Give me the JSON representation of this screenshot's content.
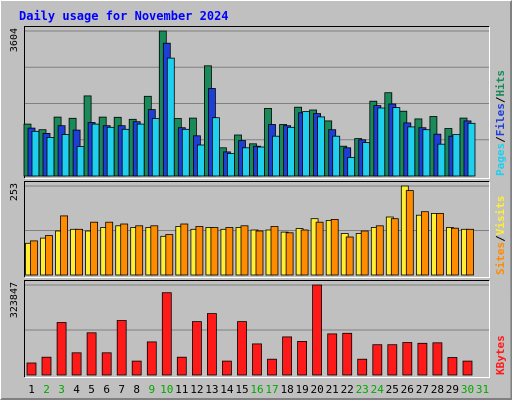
{
  "chart_data": {
    "type": "bar",
    "title": "Daily usage for November 2024",
    "days": [
      1,
      2,
      3,
      4,
      5,
      6,
      7,
      8,
      9,
      10,
      11,
      12,
      13,
      14,
      15,
      16,
      17,
      18,
      19,
      20,
      21,
      22,
      23,
      24,
      25,
      26,
      27,
      28,
      29,
      30,
      31
    ],
    "weekend_days": [
      2,
      3,
      9,
      10,
      16,
      17,
      23,
      24,
      30,
      31
    ],
    "panels": [
      {
        "id": "top",
        "ymax": 3604,
        "ymax_label": "3604",
        "right_labels": [
          "Pages",
          "Files",
          "Hits"
        ],
        "series": [
          {
            "name": "Hits",
            "color": "#1a8a5a",
            "values": [
              1290,
              1150,
              1465,
              1435,
              1990,
              1465,
              1460,
              1410,
              1980,
              3604,
              1430,
              1440,
              2740,
              700,
              1020,
              800,
              1680,
              1280,
              1710,
              1640,
              1370,
              740,
              930,
              1860,
              2070,
              1610,
              1420,
              1480,
              1180,
              1440,
              0
            ]
          },
          {
            "name": "Files",
            "color": "#1e3fd6",
            "values": [
              1190,
              1060,
              1250,
              1140,
              1330,
              1250,
              1250,
              1350,
              1650,
              3300,
              1200,
              1000,
              2175,
              600,
              880,
              740,
              1280,
              1250,
              1570,
              1550,
              1150,
              700,
              900,
              1750,
              1790,
              1320,
              1200,
              1040,
              990,
              1370,
              0
            ]
          },
          {
            "name": "Pages",
            "color": "#1ecfee",
            "values": [
              1110,
              960,
              1030,
              730,
              1290,
              1210,
              1160,
              1290,
              1430,
              2930,
              1160,
              770,
              1450,
              560,
              700,
              720,
              990,
              1210,
              1600,
              1470,
              990,
              460,
              830,
              1690,
              1700,
              1220,
              1150,
              790,
              1030,
              1310,
              0
            ]
          }
        ]
      },
      {
        "id": "middle",
        "ymax": 253,
        "ymax_label": "253",
        "right_labels": [
          "Sites",
          "Visits"
        ],
        "series": [
          {
            "name": "Visits",
            "color": "#ffee33",
            "values": [
              90,
              105,
              125,
              130,
              125,
              135,
              140,
              135,
              135,
              110,
              138,
              130,
              135,
              130,
              135,
              128,
              128,
              122,
              132,
              160,
              155,
              118,
              118,
              135,
              165,
              253,
              170,
              175,
              135,
              130,
              0
            ]
          },
          {
            "name": "Sites",
            "color": "#ff8c00",
            "values": [
              97,
              112,
              168,
              130,
              150,
              150,
              145,
              140,
              140,
              115,
              145,
              138,
              135,
              135,
              140,
              125,
              138,
              120,
              128,
              150,
              158,
              108,
              125,
              140,
              160,
              240,
              180,
              175,
              133,
              130,
              0
            ]
          }
        ]
      },
      {
        "id": "bottom",
        "ymax": 323847,
        "ymax_label": "323847",
        "right_labels": [
          "KBytes"
        ],
        "series": [
          {
            "name": "KBytes",
            "color": "#ff1a1a",
            "values": [
              43200,
              64200,
              188900,
              80000,
              152000,
              80000,
              196000,
              50000,
              119000,
              296000,
              64200,
              192000,
              221000,
              50000,
              192000,
              112000,
              57000,
              137000,
              121000,
              323847,
              148000,
              150000,
              57000,
              109000,
              109000,
              117000,
              114000,
              116000,
              63100,
              50000,
              0
            ]
          }
        ]
      }
    ]
  }
}
